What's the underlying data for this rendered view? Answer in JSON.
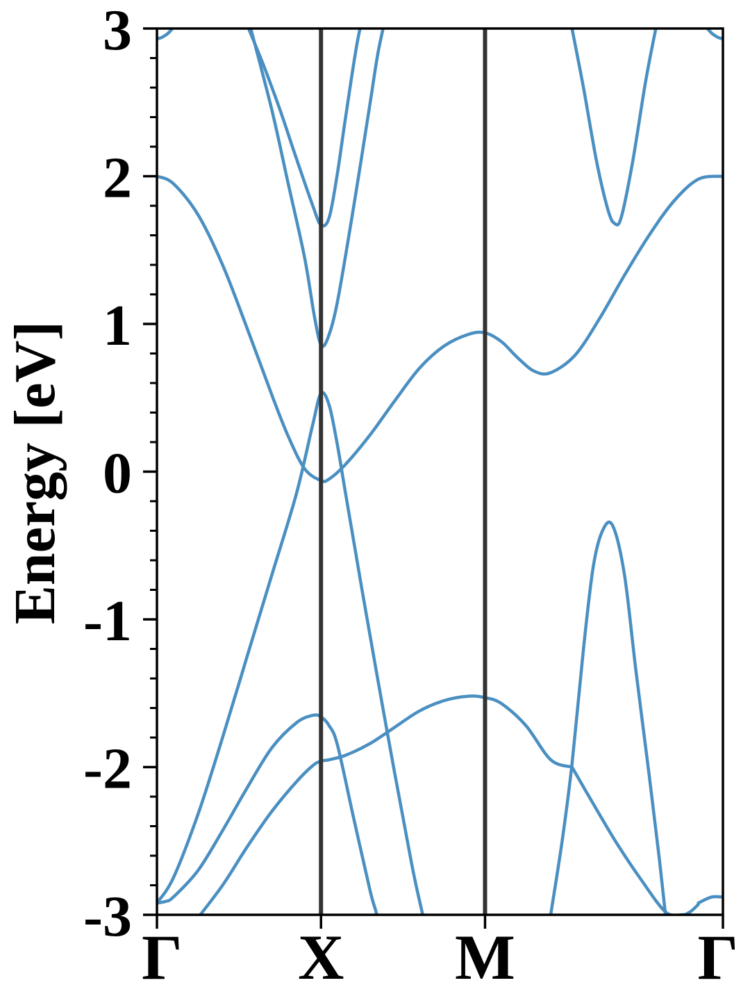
{
  "chart_data": {
    "type": "line",
    "title": "",
    "xlabel": "",
    "ylabel": "Energy [eV]",
    "ylim": [
      -3,
      3
    ],
    "xlim": [
      0,
      3.45
    ],
    "grid": false,
    "line_color": "#4a8fc1",
    "divider_color": "#333333",
    "y_ticks": [
      {
        "value": -3,
        "label": "-3"
      },
      {
        "value": -2,
        "label": "-2"
      },
      {
        "value": -1,
        "label": "-1"
      },
      {
        "value": 0,
        "label": "0"
      },
      {
        "value": 1,
        "label": "1"
      },
      {
        "value": 2,
        "label": "2"
      },
      {
        "value": 3,
        "label": "3"
      }
    ],
    "y_minor_step": 0.2,
    "x_ticks": [
      {
        "value": 0,
        "label": "Γ"
      },
      {
        "value": 1,
        "label": "X"
      },
      {
        "value": 2,
        "label": "M"
      },
      {
        "value": 3.45,
        "label": "Γ"
      }
    ],
    "vertical_lines": [
      1,
      2
    ],
    "series": [
      {
        "x": [
          0,
          0.1,
          0.25,
          0.4,
          0.55,
          0.7,
          0.8,
          0.9,
          1.0,
          1.05,
          1.15,
          1.3,
          1.45,
          1.6,
          1.75,
          1.9,
          2.0,
          2.1,
          2.2,
          2.3,
          2.4,
          2.55,
          2.7,
          2.85,
          3.0,
          3.15,
          3.3,
          3.45
        ],
        "y": [
          2.0,
          1.95,
          1.74,
          1.4,
          0.97,
          0.52,
          0.24,
          0.02,
          -0.06,
          -0.05,
          0.05,
          0.25,
          0.48,
          0.7,
          0.85,
          0.93,
          0.94,
          0.88,
          0.77,
          0.68,
          0.67,
          0.79,
          1.04,
          1.33,
          1.6,
          1.83,
          1.98,
          2.0
        ]
      },
      {
        "x": [
          0,
          0.1,
          0.25,
          0.4,
          0.55,
          0.7,
          0.85,
          0.95,
          1.0,
          1.05,
          1.1,
          1.15,
          1.25,
          1.4,
          1.55,
          1.62,
          1.7
        ],
        "y": [
          -2.92,
          -2.75,
          -2.32,
          -1.8,
          -1.25,
          -0.7,
          -0.15,
          0.32,
          0.53,
          0.45,
          0.18,
          -0.15,
          -0.8,
          -1.74,
          -2.64,
          -3.0,
          -3.4
        ]
      },
      {
        "x": [
          0,
          0.05,
          0.1,
          0.25,
          0.4,
          0.55,
          0.7,
          0.85,
          0.95,
          1.0,
          1.05,
          1.1,
          1.2,
          1.3,
          1.34,
          1.4
        ],
        "y": [
          -2.92,
          -2.91,
          -2.88,
          -2.7,
          -2.43,
          -2.14,
          -1.87,
          -1.7,
          -1.65,
          -1.66,
          -1.72,
          -1.85,
          -2.35,
          -2.84,
          -3.0,
          -3.3
        ]
      },
      {
        "x": [
          0.25,
          0.4,
          0.55,
          0.7,
          0.85,
          0.95,
          1.0,
          1.05,
          1.15,
          1.3,
          1.45,
          1.6,
          1.75,
          1.9,
          2.0,
          2.1,
          2.25,
          2.4,
          2.53
        ],
        "y": [
          -3.02,
          -2.8,
          -2.54,
          -2.3,
          -2.1,
          -1.99,
          -1.96,
          -1.95,
          -1.92,
          -1.84,
          -1.73,
          -1.62,
          -1.55,
          -1.52,
          -1.53,
          -1.57,
          -1.72,
          -1.95,
          -2.0
        ]
      },
      {
        "x": [
          2.53,
          2.65,
          2.8,
          2.95,
          3.1,
          3.2,
          3.25,
          3.3
        ],
        "y": [
          -2.0,
          -2.23,
          -2.51,
          -2.76,
          -2.98,
          -3.0,
          -2.98,
          -2.93
        ]
      },
      {
        "x": [
          3.3,
          3.38,
          3.45
        ],
        "y": [
          -2.92,
          -2.88,
          -2.88
        ]
      },
      {
        "x": [
          2.4,
          2.47,
          2.53,
          2.6,
          2.66,
          2.72,
          2.78,
          2.85,
          2.92,
          3.0,
          3.06,
          3.1
        ],
        "y": [
          -3.0,
          -2.5,
          -1.98,
          -1.2,
          -0.64,
          -0.39,
          -0.37,
          -0.7,
          -1.35,
          -2.05,
          -2.6,
          -3.0
        ]
      },
      {
        "x": [
          0.56,
          0.7,
          0.8,
          0.9,
          0.96,
          1.0,
          1.04,
          1.1,
          1.2,
          1.3,
          1.35,
          1.42
        ],
        "y": [
          3.05,
          2.45,
          1.95,
          1.45,
          1.05,
          0.86,
          0.9,
          1.15,
          1.8,
          2.5,
          2.85,
          3.2
        ]
      },
      {
        "x": [
          0.54,
          0.65,
          0.75,
          0.85,
          0.95,
          1.0,
          1.05,
          1.1,
          1.15,
          1.22,
          1.28
        ],
        "y": [
          3.05,
          2.75,
          2.45,
          2.12,
          1.8,
          1.67,
          1.72,
          2.02,
          2.4,
          2.9,
          3.2
        ]
      },
      {
        "x": [
          2.53,
          2.6,
          2.68,
          2.75,
          2.79,
          2.83,
          2.9,
          2.98,
          3.05
        ],
        "y": [
          3.0,
          2.6,
          2.1,
          1.77,
          1.68,
          1.72,
          2.1,
          2.65,
          3.05
        ]
      },
      {
        "x": [
          0,
          0.03,
          0.07,
          0.11
        ],
        "y": [
          2.93,
          2.94,
          2.97,
          3.02
        ]
      },
      {
        "x": [
          3.34,
          3.38,
          3.42,
          3.45
        ],
        "y": [
          3.02,
          2.97,
          2.94,
          2.93
        ]
      }
    ]
  }
}
